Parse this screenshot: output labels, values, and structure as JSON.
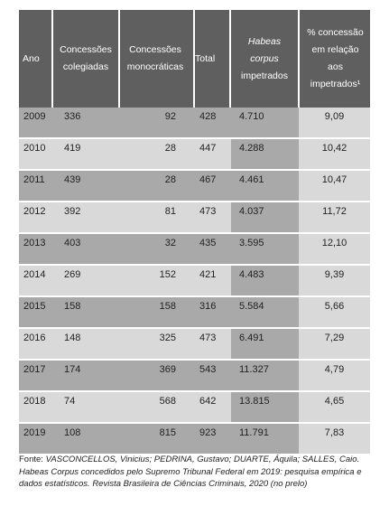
{
  "table": {
    "headers": {
      "ano": "Ano",
      "colegiadas": [
        "Concessões",
        "colegiadas"
      ],
      "monocraticas": [
        "Concessões",
        "monocráticas"
      ],
      "total": "Total",
      "habeas": [
        "Habeas",
        "corpus",
        "impetrados"
      ],
      "percentual": [
        "% concessão",
        "em relação",
        "aos",
        "impetrados¹"
      ]
    },
    "rows": [
      {
        "ano": "2009",
        "colegiadas": "336",
        "monocraticas": "92",
        "total": "428",
        "impetrados": "4.710",
        "percentual": "9,09"
      },
      {
        "ano": "2010",
        "colegiadas": "419",
        "monocraticas": "28",
        "total": "447",
        "impetrados": "4.288",
        "percentual": "10,42"
      },
      {
        "ano": "2011",
        "colegiadas": "439",
        "monocraticas": "28",
        "total": "467",
        "impetrados": "4.461",
        "percentual": "10,47"
      },
      {
        "ano": "2012",
        "colegiadas": "392",
        "monocraticas": "81",
        "total": "473",
        "impetrados": "4.037",
        "percentual": "11,72"
      },
      {
        "ano": "2013",
        "colegiadas": "403",
        "monocraticas": "32",
        "total": "435",
        "impetrados": "3.595",
        "percentual": "12,10"
      },
      {
        "ano": "2014",
        "colegiadas": "269",
        "monocraticas": "152",
        "total": "421",
        "impetrados": "4.483",
        "percentual": "9,39"
      },
      {
        "ano": "2015",
        "colegiadas": "158",
        "monocraticas": "158",
        "total": "316",
        "impetrados": "5.584",
        "percentual": "5,66"
      },
      {
        "ano": "2016",
        "colegiadas": "148",
        "monocraticas": "325",
        "total": "473",
        "impetrados": "6.491",
        "percentual": "7,29"
      },
      {
        "ano": "2017",
        "colegiadas": "174",
        "monocraticas": "369",
        "total": "543",
        "impetrados": "11.327",
        "percentual": "4,79"
      },
      {
        "ano": "2018",
        "colegiadas": "74",
        "monocraticas": "568",
        "total": "642",
        "impetrados": "13.815",
        "percentual": "4,65"
      },
      {
        "ano": "2019",
        "colegiadas": "108",
        "monocraticas": "815",
        "total": "923",
        "impetrados": "11.791",
        "percentual": "7,83"
      }
    ]
  },
  "footnote": {
    "prefix": "Fonte: ",
    "authors": "VASCONCELLOS, Vinicius; PEDRINA, Gustavo; DUARTE, Áquila; SALLES, Caio. Habeas Corpus concedidos pelo Supremo Tribunal Federal em 2019: pesquisa empírica e dados estatísticos. Revista Brasileira de Ciências Criminais, 2020 (no prelo)"
  },
  "colors": {
    "header_bg": "#5f5f5f",
    "dark_band": "#a9a9a9",
    "light_band": "#d9d9d9"
  }
}
